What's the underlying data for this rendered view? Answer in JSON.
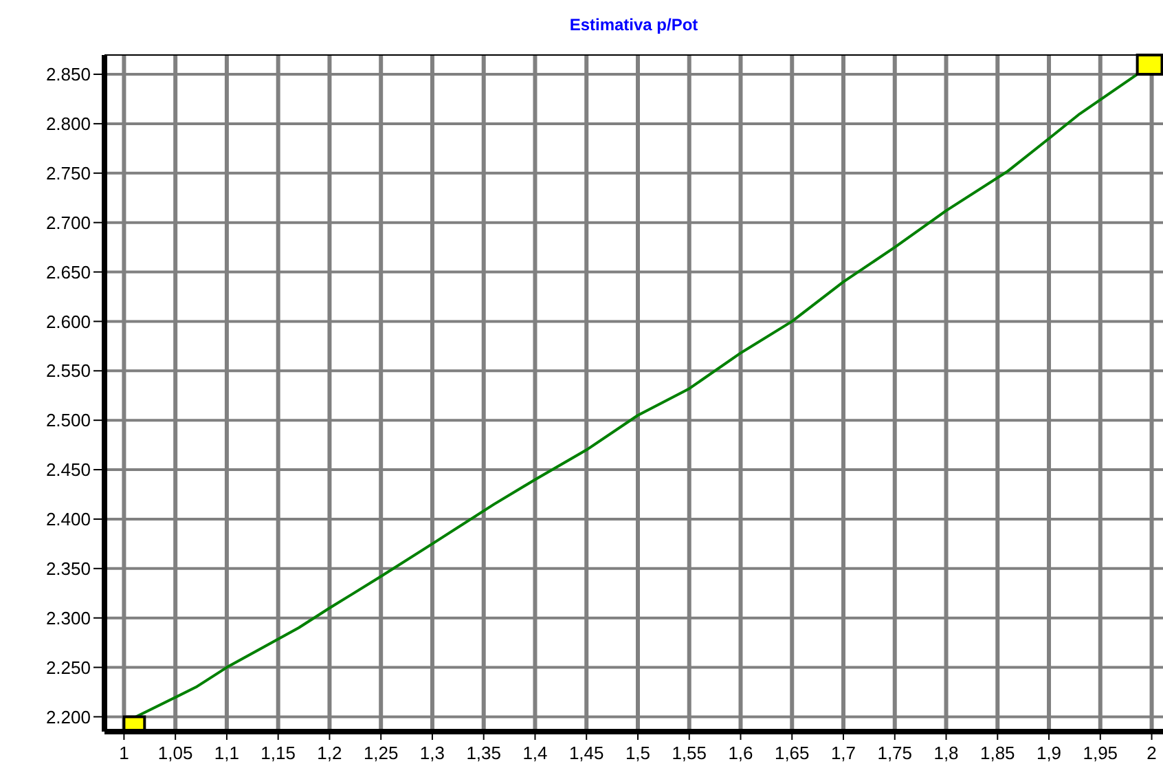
{
  "chart_data": {
    "type": "line",
    "title": "Estimativa p/Pot",
    "x": [
      1,
      1.07,
      1.1,
      1.17,
      1.2,
      1.25,
      1.3,
      1.36,
      1.4,
      1.45,
      1.5,
      1.55,
      1.6,
      1.65,
      1.7,
      1.75,
      1.8,
      1.86,
      1.9,
      1.93,
      2
    ],
    "series": [
      {
        "color": "#008000",
        "values": [
          2194,
          2230,
          2250,
          2290,
          2310,
          2342,
          2375,
          2415,
          2440,
          2470,
          2505,
          2532,
          2568,
          2600,
          2640,
          2675,
          2712,
          2752,
          2785,
          2810,
          2860
        ]
      }
    ],
    "xlim": [
      0.981,
      2.011
    ],
    "ylim": [
      2185,
      2869.5
    ],
    "xticks": [
      1,
      {
        "value": 1.05,
        "label": "1,05"
      },
      {
        "value": 1.1,
        "label": "1,1"
      },
      {
        "value": 1.15,
        "label": "1,15"
      },
      {
        "value": 1.2,
        "label": "1,2"
      },
      {
        "value": 1.25,
        "label": "1,25"
      },
      {
        "value": 1.3,
        "label": "1,3"
      },
      {
        "value": 1.35,
        "label": "1,35"
      },
      {
        "value": 1.4,
        "label": "1,4"
      },
      {
        "value": 1.45,
        "label": "1,45"
      },
      {
        "value": 1.5,
        "label": "1,5"
      },
      {
        "value": 1.55,
        "label": "1,55"
      },
      {
        "value": 1.6,
        "label": "1,6"
      },
      {
        "value": 1.65,
        "label": "1,65"
      },
      {
        "value": 1.7,
        "label": "1,7"
      },
      {
        "value": 1.75,
        "label": "1,75"
      },
      {
        "value": 1.8,
        "label": "1,8"
      },
      {
        "value": 1.85,
        "label": "1,85"
      },
      {
        "value": 1.9,
        "label": "1,9"
      },
      {
        "value": 1.95,
        "label": "1,95"
      },
      2
    ],
    "yticks": [
      {
        "value": 2200,
        "label": "2.200"
      },
      {
        "value": 2250,
        "label": "2.250"
      },
      {
        "value": 2300,
        "label": "2.300"
      },
      {
        "value": 2350,
        "label": "2.350"
      },
      {
        "value": 2400,
        "label": "2.400"
      },
      {
        "value": 2450,
        "label": "2.450"
      },
      {
        "value": 2500,
        "label": "2.500"
      },
      {
        "value": 2550,
        "label": "2.550"
      },
      {
        "value": 2600,
        "label": "2.600"
      },
      {
        "value": 2650,
        "label": "2.650"
      },
      {
        "value": 2700,
        "label": "2.700"
      },
      {
        "value": 2750,
        "label": "2.750"
      },
      {
        "value": 2800,
        "label": "2.800"
      },
      {
        "value": 2850,
        "label": "2.850"
      }
    ],
    "grid": true,
    "line_style": "solid"
  }
}
